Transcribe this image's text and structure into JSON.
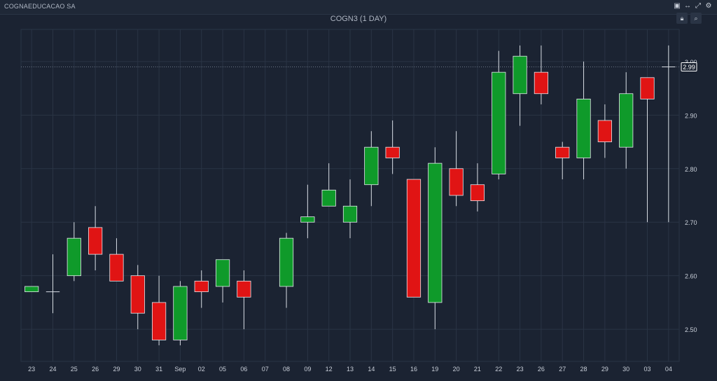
{
  "header": {
    "company": "COGNAEDUCACAO SA",
    "title": "COGN3 (1 DAY)"
  },
  "icons": [
    "restore-icon",
    "link-icon",
    "expand-icon",
    "settings-icon",
    "lock-icon",
    "search-icon"
  ],
  "colors": {
    "up": "#0f9a2a",
    "down": "#e01414",
    "background": "#1b2332",
    "grid": "#2a3445",
    "axis_text": "#c8ced8",
    "last_price_box": "#ffffff"
  },
  "chart_data": {
    "type": "candlestick",
    "title": "COGN3 (1 DAY)",
    "categories": [
      "23",
      "24",
      "25",
      "26",
      "29",
      "30",
      "31",
      "Sep",
      "02",
      "05",
      "06",
      "07",
      "08",
      "09",
      "12",
      "13",
      "14",
      "15",
      "16",
      "19",
      "20",
      "21",
      "22",
      "23",
      "26",
      "27",
      "28",
      "29",
      "30",
      "03",
      "04"
    ],
    "candles": [
      {
        "o": 2.57,
        "h": 2.58,
        "l": 2.57,
        "c": 2.58
      },
      {
        "o": 2.57,
        "h": 2.64,
        "l": 2.53,
        "c": 2.57
      },
      {
        "o": 2.6,
        "h": 2.7,
        "l": 2.59,
        "c": 2.67
      },
      {
        "o": 2.69,
        "h": 2.73,
        "l": 2.61,
        "c": 2.64
      },
      {
        "o": 2.64,
        "h": 2.67,
        "l": 2.59,
        "c": 2.59
      },
      {
        "o": 2.6,
        "h": 2.62,
        "l": 2.5,
        "c": 2.53
      },
      {
        "o": 2.55,
        "h": 2.6,
        "l": 2.47,
        "c": 2.48
      },
      {
        "o": 2.48,
        "h": 2.59,
        "l": 2.47,
        "c": 2.58
      },
      {
        "o": 2.59,
        "h": 2.61,
        "l": 2.54,
        "c": 2.57
      },
      {
        "o": 2.58,
        "h": 2.63,
        "l": 2.55,
        "c": 2.63
      },
      {
        "o": 2.59,
        "h": 2.61,
        "l": 2.5,
        "c": 2.56
      },
      null,
      {
        "o": 2.58,
        "h": 2.68,
        "l": 2.54,
        "c": 2.67
      },
      {
        "o": 2.7,
        "h": 2.77,
        "l": 2.67,
        "c": 2.71
      },
      {
        "o": 2.73,
        "h": 2.81,
        "l": 2.73,
        "c": 2.76
      },
      {
        "o": 2.7,
        "h": 2.78,
        "l": 2.67,
        "c": 2.73
      },
      {
        "o": 2.77,
        "h": 2.87,
        "l": 2.73,
        "c": 2.84
      },
      {
        "o": 2.84,
        "h": 2.89,
        "l": 2.79,
        "c": 2.82
      },
      {
        "o": 2.78,
        "h": 2.78,
        "l": 2.56,
        "c": 2.56
      },
      {
        "o": 2.55,
        "h": 2.84,
        "l": 2.5,
        "c": 2.81
      },
      {
        "o": 2.8,
        "h": 2.87,
        "l": 2.73,
        "c": 2.75
      },
      {
        "o": 2.77,
        "h": 2.81,
        "l": 2.72,
        "c": 2.74
      },
      {
        "o": 2.79,
        "h": 3.02,
        "l": 2.78,
        "c": 2.98
      },
      {
        "o": 2.94,
        "h": 3.03,
        "l": 2.88,
        "c": 3.01
      },
      {
        "o": 2.98,
        "h": 3.03,
        "l": 2.92,
        "c": 2.94
      },
      {
        "o": 2.84,
        "h": 2.85,
        "l": 2.78,
        "c": 2.82
      },
      {
        "o": 2.82,
        "h": 3.0,
        "l": 2.78,
        "c": 2.93
      },
      {
        "o": 2.89,
        "h": 2.92,
        "l": 2.82,
        "c": 2.85
      },
      {
        "o": 2.84,
        "h": 2.98,
        "l": 2.8,
        "c": 2.94
      },
      {
        "o": 2.97,
        "h": 2.97,
        "l": 2.7,
        "c": 2.93
      },
      {
        "o": 2.99,
        "h": 3.03,
        "l": 2.7,
        "c": 2.99
      }
    ],
    "y_ticks": [
      "2.50",
      "2.60",
      "2.70",
      "2.80",
      "2.90",
      "3.00"
    ],
    "ylim": [
      2.44,
      3.06
    ],
    "last_price": "2.99",
    "last_price_value": 2.99,
    "grid": true,
    "xlabel": "",
    "ylabel": ""
  }
}
